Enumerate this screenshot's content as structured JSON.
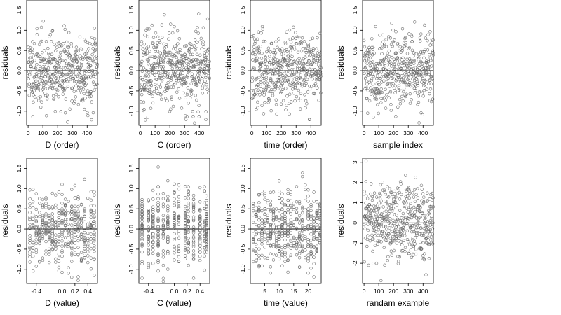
{
  "chart_data": [
    {
      "type": "scatter",
      "xlabel": "D (order)",
      "ylabel": "residuals",
      "xlim": [
        -10,
        470
      ],
      "ylim": [
        -1.35,
        1.75
      ],
      "xticks": [
        0,
        100,
        200,
        300,
        400
      ],
      "xtick_labels": [
        "0",
        "100",
        "200",
        "300",
        "400"
      ],
      "yticks": [
        -1.0,
        -0.5,
        0.0,
        0.5,
        1.0,
        1.5
      ],
      "ytick_labels": [
        "-1.0",
        "-0.5",
        "0.0",
        "0.5",
        "1.0",
        "1.5"
      ],
      "hline": 0,
      "x_mode": "order",
      "n_points": 470,
      "seed": 11,
      "grid": false
    },
    {
      "type": "scatter",
      "xlabel": "C (order)",
      "ylabel": "residuals",
      "xlim": [
        -10,
        470
      ],
      "ylim": [
        -1.35,
        1.75
      ],
      "xticks": [
        0,
        100,
        200,
        300,
        400
      ],
      "xtick_labels": [
        "0",
        "100",
        "200",
        "300",
        "400"
      ],
      "yticks": [
        -1.0,
        -0.5,
        0.0,
        0.5,
        1.0,
        1.5
      ],
      "ytick_labels": [
        "-1.0",
        "-0.5",
        "0.0",
        "0.5",
        "1.0",
        "1.5"
      ],
      "hline": 0,
      "x_mode": "order",
      "n_points": 470,
      "seed": 23,
      "grid": false
    },
    {
      "type": "scatter",
      "xlabel": "time (order)",
      "ylabel": "residuals",
      "xlim": [
        -10,
        470
      ],
      "ylim": [
        -1.35,
        1.75
      ],
      "xticks": [
        0,
        100,
        200,
        300,
        400
      ],
      "xtick_labels": [
        "0",
        "100",
        "200",
        "300",
        "400"
      ],
      "yticks": [
        -1.0,
        -0.5,
        0.0,
        0.5,
        1.0,
        1.5
      ],
      "ytick_labels": [
        "-1.0",
        "-0.5",
        "0.0",
        "0.5",
        "1.0",
        "1.5"
      ],
      "hline": 0,
      "x_mode": "order",
      "n_points": 470,
      "seed": 37,
      "grid": false
    },
    {
      "type": "scatter",
      "xlabel": "sample index",
      "ylabel": "residuals",
      "xlim": [
        -10,
        470
      ],
      "ylim": [
        -1.35,
        1.75
      ],
      "xticks": [
        0,
        100,
        200,
        300,
        400
      ],
      "xtick_labels": [
        "0",
        "100",
        "200",
        "300",
        "400"
      ],
      "yticks": [
        -1.0,
        -0.5,
        0.0,
        0.5,
        1.0,
        1.5
      ],
      "ytick_labels": [
        "-1.0",
        "-0.5",
        "0.0",
        "0.5",
        "1.0",
        "1.5"
      ],
      "hline": 0,
      "x_mode": "order",
      "n_points": 470,
      "seed": 41,
      "grid": false
    },
    {
      "type": "scatter",
      "xlabel": "D (value)",
      "ylabel": "residuals",
      "xlim": [
        -0.55,
        0.55
      ],
      "ylim": [
        -1.35,
        1.75
      ],
      "xticks": [
        -0.4,
        0.0,
        0.2,
        0.4
      ],
      "xtick_labels": [
        "-0.4",
        "0.0",
        "0.2",
        "0.4"
      ],
      "yticks": [
        -1.0,
        -0.5,
        0.0,
        0.5,
        1.0,
        1.5
      ],
      "ytick_labels": [
        "-1.0",
        "-0.5",
        "0.0",
        "0.5",
        "1.0",
        "1.5"
      ],
      "hline": 0,
      "x_mode": "discrete",
      "x_levels": [
        -0.5,
        -0.45,
        -0.4,
        -0.35,
        -0.3,
        -0.25,
        -0.2,
        -0.15,
        -0.1,
        -0.05,
        0.0,
        0.05,
        0.1,
        0.15,
        0.2,
        0.25,
        0.3,
        0.35,
        0.4,
        0.45,
        0.5
      ],
      "n_points": 470,
      "seed": 53,
      "grid": false
    },
    {
      "type": "scatter",
      "xlabel": "C (value)",
      "ylabel": "residuals",
      "xlim": [
        -0.55,
        0.55
      ],
      "ylim": [
        -1.35,
        1.75
      ],
      "xticks": [
        -0.4,
        0.0,
        0.2,
        0.4
      ],
      "xtick_labels": [
        "-0.4",
        "0.0",
        "0.2",
        "0.4"
      ],
      "yticks": [
        -1.0,
        -0.5,
        0.0,
        0.5,
        1.0,
        1.5
      ],
      "ytick_labels": [
        "-1.0",
        "-0.5",
        "0.0",
        "0.5",
        "1.0",
        "1.5"
      ],
      "hline": 0,
      "x_mode": "discrete",
      "x_levels": [
        -0.5,
        -0.4,
        -0.33,
        -0.25,
        -0.17,
        -0.1,
        0.0,
        0.07,
        0.17,
        0.22,
        0.3,
        0.4,
        0.47,
        0.5
      ],
      "n_points": 470,
      "seed": 67,
      "grid": false
    },
    {
      "type": "scatter",
      "xlabel": "time (value)",
      "ylabel": "residuals",
      "xlim": [
        0,
        24.5
      ],
      "ylim": [
        -1.35,
        1.75
      ],
      "xticks": [
        5,
        10,
        15,
        20
      ],
      "xtick_labels": [
        "5",
        "10",
        "15",
        "20"
      ],
      "yticks": [
        -1.0,
        -0.5,
        0.0,
        0.5,
        1.0,
        1.5
      ],
      "ytick_labels": [
        "-1.0",
        "-0.5",
        "0.0",
        "0.5",
        "1.0",
        "1.5"
      ],
      "hline": 0,
      "x_mode": "discrete",
      "x_levels": [
        1,
        2,
        3,
        4,
        5,
        6,
        7,
        8,
        9,
        10,
        11,
        12,
        13,
        14,
        15,
        16,
        17,
        18,
        19,
        20,
        21,
        22,
        23,
        24
      ],
      "n_points": 470,
      "seed": 79,
      "grid": false
    },
    {
      "type": "scatter",
      "xlabel": "randam example",
      "ylabel": "residuals",
      "xlim": [
        -10,
        470
      ],
      "ylim": [
        -3.0,
        3.2
      ],
      "xticks": [
        0,
        100,
        200,
        300,
        400
      ],
      "xtick_labels": [
        "0",
        "100",
        "200",
        "300",
        "400"
      ],
      "yticks": [
        -2,
        -1,
        0,
        1,
        2,
        3
      ],
      "ytick_labels": [
        "-2",
        "-1",
        "0",
        "1",
        "2",
        "3"
      ],
      "hline": 0,
      "x_mode": "order",
      "n_points": 470,
      "seed": 97,
      "noise_scale": 1.0,
      "grid": false
    }
  ],
  "style": {
    "point_color": "#6a6a6a",
    "axis_color": "#000000",
    "hline_color": "#000000"
  }
}
